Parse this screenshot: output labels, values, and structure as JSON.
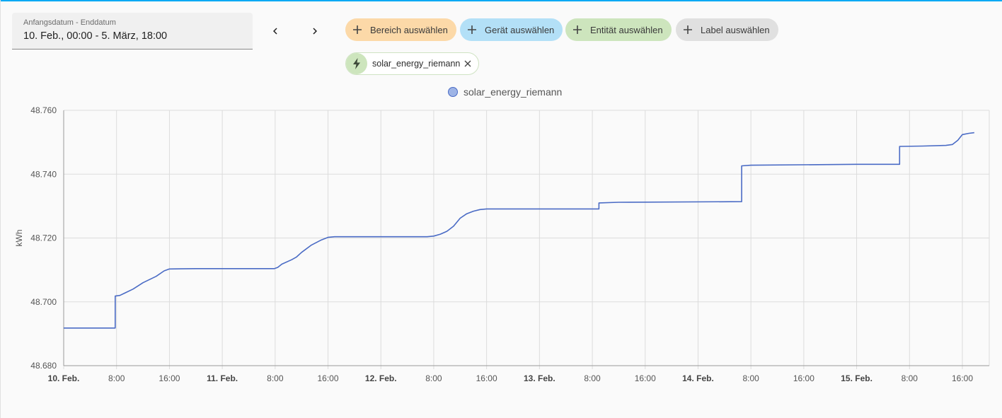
{
  "date_picker": {
    "label": "Anfangsdatum - Enddatum",
    "value": "10. Feb., 00:00 - 5. März, 18:00"
  },
  "nav": {
    "prev_icon": "chevron-left-icon",
    "next_icon": "chevron-right-icon"
  },
  "target_chips": [
    {
      "label": "Bereich auswählen",
      "color": "#fcd9a8",
      "icon": "plus-icon"
    },
    {
      "label": "Gerät auswählen",
      "color": "#b3e0f7",
      "icon": "plus-icon"
    },
    {
      "label": "Entität auswählen",
      "color": "#cde5bd",
      "icon": "plus-icon"
    },
    {
      "label": "Label auswählen",
      "color": "#e0e0e0",
      "icon": "plus-icon"
    }
  ],
  "selected_entity": {
    "name": "solar_energy_riemann",
    "icon": "lightning-bolt-icon",
    "remove_icon": "close-icon"
  },
  "colors": {
    "accent": "#03a9f4",
    "line": "#4a6bc5"
  },
  "chart_data": {
    "type": "line",
    "series": [
      {
        "name": "solar_energy_riemann",
        "points": [
          [
            0,
            48.6918
          ],
          [
            7.8,
            48.6918
          ],
          [
            7.8,
            48.7018
          ],
          [
            8.5,
            48.702
          ],
          [
            9.3,
            48.7028
          ],
          [
            10.5,
            48.704
          ],
          [
            12.0,
            48.706
          ],
          [
            14.0,
            48.708
          ],
          [
            15.2,
            48.7097
          ],
          [
            16.0,
            48.7103
          ],
          [
            20.0,
            48.7104
          ],
          [
            31.9,
            48.7104
          ],
          [
            32.4,
            48.7108
          ],
          [
            33.0,
            48.7118
          ],
          [
            34.5,
            48.7132
          ],
          [
            35.2,
            48.714
          ],
          [
            36.0,
            48.7155
          ],
          [
            37.5,
            48.7178
          ],
          [
            39.0,
            48.7194
          ],
          [
            40.0,
            48.7202
          ],
          [
            41.0,
            48.7204
          ],
          [
            55.0,
            48.7204
          ],
          [
            56.0,
            48.7206
          ],
          [
            57.0,
            48.7212
          ],
          [
            58.0,
            48.7221
          ],
          [
            59.0,
            48.7237
          ],
          [
            60.0,
            48.7262
          ],
          [
            61.0,
            48.7276
          ],
          [
            62.0,
            48.7284
          ],
          [
            63.0,
            48.7289
          ],
          [
            64.0,
            48.7291
          ],
          [
            81.0,
            48.7291
          ],
          [
            81.0,
            48.731
          ],
          [
            84.0,
            48.7312
          ],
          [
            102.6,
            48.7314
          ],
          [
            102.6,
            48.7426
          ],
          [
            104.0,
            48.7428
          ],
          [
            120.0,
            48.7431
          ],
          [
            126.5,
            48.7431
          ],
          [
            126.5,
            48.7487
          ],
          [
            130.0,
            48.7488
          ],
          [
            133.5,
            48.749
          ],
          [
            134.5,
            48.7493
          ],
          [
            135.3,
            48.7506
          ],
          [
            136.0,
            48.7524
          ],
          [
            137.0,
            48.7528
          ],
          [
            137.8,
            48.753
          ]
        ]
      }
    ],
    "xlim": [
      0,
      137.8
    ],
    "ylim": [
      48.68,
      48.76
    ],
    "yticks": [
      48.68,
      48.7,
      48.72,
      48.74,
      48.76
    ],
    "ytick_labels": [
      "48.680",
      "48.700",
      "48.720",
      "48.740",
      "48.760"
    ],
    "xticks": [
      {
        "h": 0,
        "label": "10. Feb.",
        "bold": true
      },
      {
        "h": 8,
        "label": "8:00",
        "bold": false
      },
      {
        "h": 16,
        "label": "16:00",
        "bold": false
      },
      {
        "h": 24,
        "label": "11. Feb.",
        "bold": true
      },
      {
        "h": 32,
        "label": "8:00",
        "bold": false
      },
      {
        "h": 40,
        "label": "16:00",
        "bold": false
      },
      {
        "h": 48,
        "label": "12. Feb.",
        "bold": true
      },
      {
        "h": 56,
        "label": "8:00",
        "bold": false
      },
      {
        "h": 64,
        "label": "16:00",
        "bold": false
      },
      {
        "h": 72,
        "label": "13. Feb.",
        "bold": true
      },
      {
        "h": 80,
        "label": "8:00",
        "bold": false
      },
      {
        "h": 88,
        "label": "16:00",
        "bold": false
      },
      {
        "h": 96,
        "label": "14. Feb.",
        "bold": true
      },
      {
        "h": 104,
        "label": "8:00",
        "bold": false
      },
      {
        "h": 112,
        "label": "16:00",
        "bold": false
      },
      {
        "h": 120,
        "label": "15. Feb.",
        "bold": true
      },
      {
        "h": 128,
        "label": "8:00",
        "bold": false
      },
      {
        "h": 136,
        "label": "16:00",
        "bold": false
      }
    ],
    "ylabel": "kWh",
    "grid": true,
    "legend": "top-center"
  }
}
